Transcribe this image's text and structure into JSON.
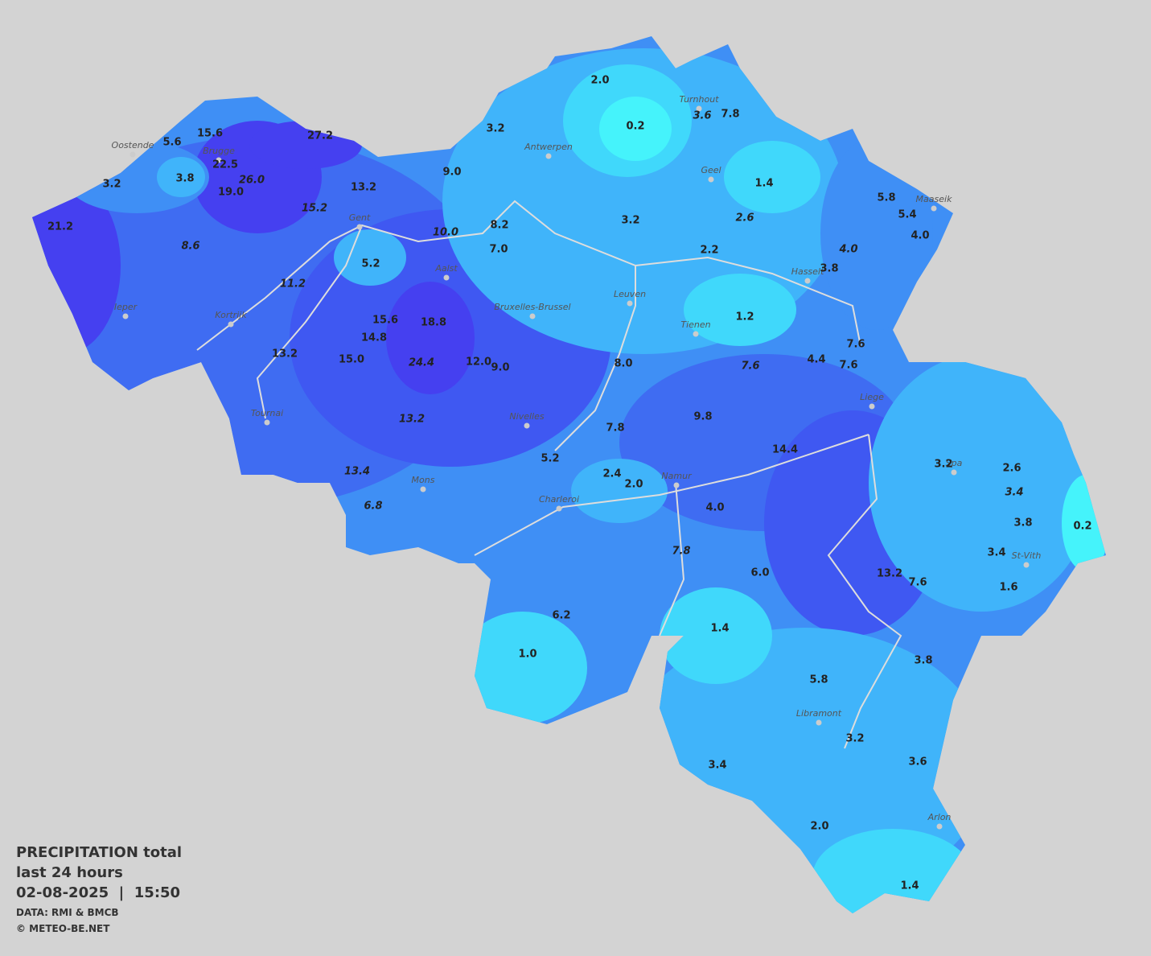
{
  "legend": {
    "title": "PRECIPITATION total",
    "period": "last 24 hours",
    "timestamp": "02-08-2025  |  15:50",
    "source": "DATA: RMI & BMCB",
    "credit": "© METEO-BE.NET"
  },
  "cities": [
    "Oostende",
    "Brugge",
    "Gent",
    "Antwerpen",
    "Turnhout",
    "Geel",
    "Maaseik",
    "Hasselt",
    "Aalst",
    "Leuven",
    "Bruxelles-Brussel",
    "Ieper",
    "Kortrijk",
    "Tienen",
    "Liege",
    "Tournai",
    "Nivelles",
    "Mons",
    "Namur",
    "Charleroi",
    "Spa",
    "St-Vith",
    "Libramont",
    "Arlon"
  ],
  "readings": [
    "2.0",
    "0.2",
    "3.6",
    "7.8",
    "15.6",
    "5.6",
    "27.2",
    "3.2",
    "22.5",
    "26.0",
    "3.8",
    "19.0",
    "3.2",
    "9.0",
    "13.2",
    "1.4",
    "5.8",
    "5.4",
    "4.0",
    "15.2",
    "3.2",
    "2.6",
    "8.2",
    "21.2",
    "10.0",
    "8.6",
    "7.0",
    "2.2",
    "4.0",
    "5.2",
    "3.8",
    "11.2",
    "1.2",
    "15.6",
    "18.8",
    "14.8",
    "7.6",
    "13.2",
    "15.0",
    "24.4",
    "12.0",
    "9.0",
    "8.0",
    "7.6",
    "4.4",
    "7.6",
    "9.8",
    "13.2",
    "7.8",
    "14.4",
    "5.2",
    "3.2",
    "2.6",
    "13.4",
    "2.4",
    "2.0",
    "3.4",
    "6.8",
    "4.0",
    "3.8",
    "0.2",
    "7.8",
    "3.4",
    "6.0",
    "13.2",
    "7.6",
    "1.6",
    "6.2",
    "1.4",
    "1.0",
    "3.8",
    "5.8",
    "3.2",
    "3.4",
    "3.6",
    "2.0",
    "1.4"
  ]
}
